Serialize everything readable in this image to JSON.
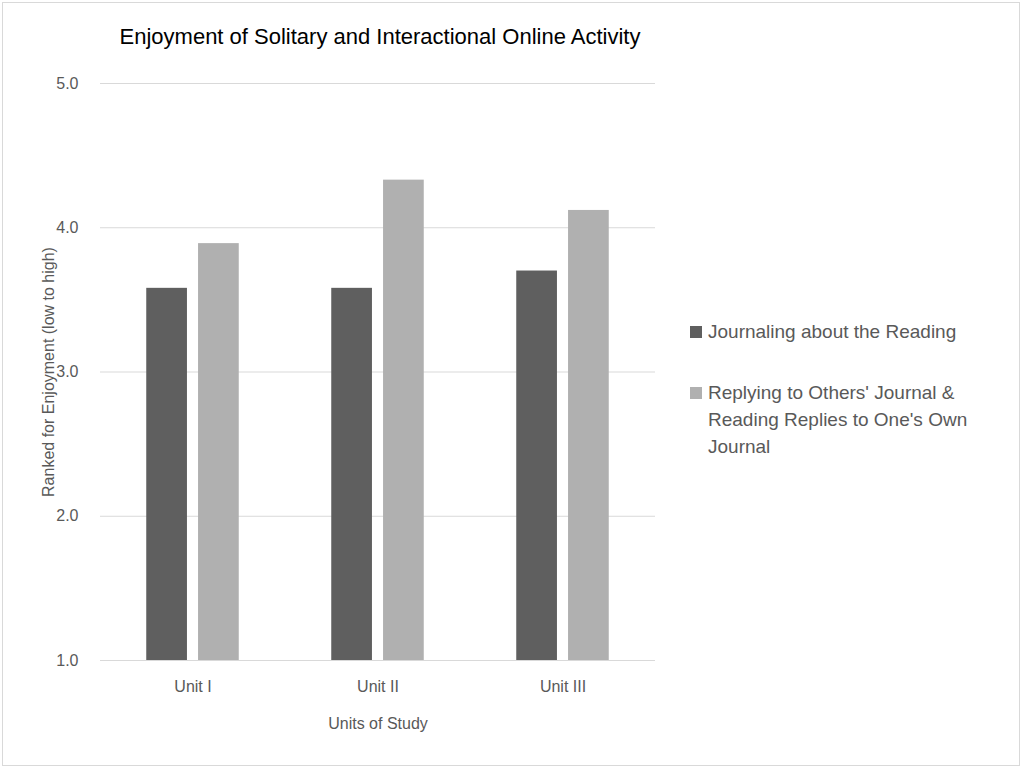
{
  "chart_data": {
    "type": "bar",
    "title": "Enjoyment of Solitary and Interactional Online Activity",
    "x_label": "Units of Study",
    "y_label": "Ranked for Enjoyment (low to high)",
    "categories": [
      "Unit I",
      "Unit II",
      "Unit III"
    ],
    "series": [
      {
        "name": "Journaling about the Reading",
        "color": "#5f5f5f",
        "values": [
          3.58,
          3.58,
          3.7
        ]
      },
      {
        "name": "Replying to Others' Journal & Reading Replies to One's Own Journal",
        "color": "#b0b0b0",
        "values": [
          3.89,
          4.33,
          4.12
        ]
      }
    ],
    "ylim": [
      1,
      5
    ],
    "yticks": [
      1,
      2,
      3,
      4,
      5
    ],
    "grid": true,
    "legend": "right"
  }
}
